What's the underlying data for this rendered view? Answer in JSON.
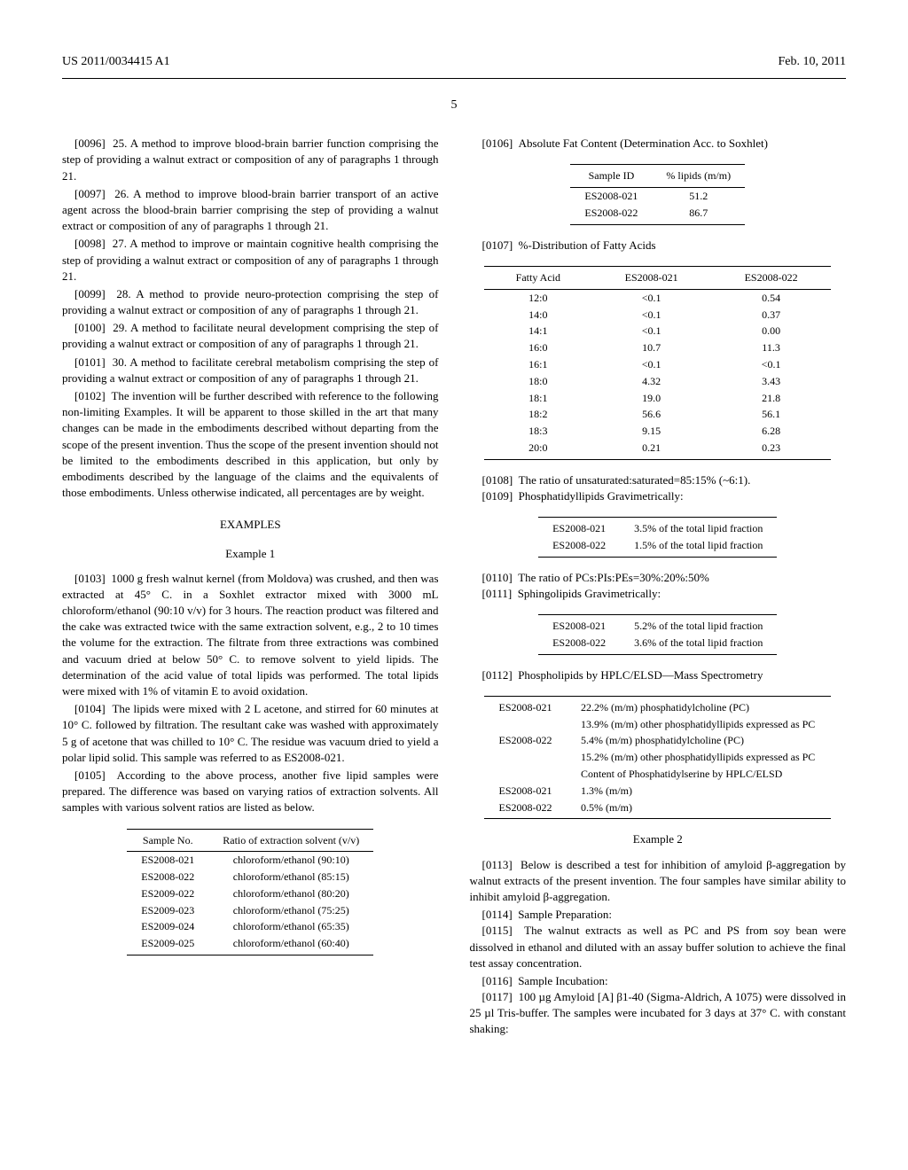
{
  "header": {
    "left": "US 2011/0034415 A1",
    "right": "Feb. 10, 2011"
  },
  "pageNum": "5",
  "leftCol": {
    "paras": [
      {
        "num": "[0096]",
        "text": "25. A method to improve blood-brain barrier function comprising the step of providing a walnut extract or composition of any of paragraphs 1 through 21."
      },
      {
        "num": "[0097]",
        "text": "26. A method to improve blood-brain barrier transport of an active agent across the blood-brain barrier comprising the step of providing a walnut extract or composition of any of paragraphs 1 through 21."
      },
      {
        "num": "[0098]",
        "text": "27. A method to improve or maintain cognitive health comprising the step of providing a walnut extract or composition of any of paragraphs 1 through 21."
      },
      {
        "num": "[0099]",
        "text": "28. A method to provide neuro-protection comprising the step of providing a walnut extract or composition of any of paragraphs 1 through 21."
      },
      {
        "num": "[0100]",
        "text": "29. A method to facilitate neural development comprising the step of providing a walnut extract or composition of any of paragraphs 1 through 21."
      },
      {
        "num": "[0101]",
        "text": "30. A method to facilitate cerebral metabolism comprising the step of providing a walnut extract or composition of any of paragraphs 1 through 21."
      },
      {
        "num": "[0102]",
        "text": "The invention will be further described with reference to the following non-limiting Examples. It will be apparent to those skilled in the art that many changes can be made in the embodiments described without departing from the scope of the present invention. Thus the scope of the present invention should not be limited to the embodiments described in this application, but only by embodiments described by the language of the claims and the equivalents of those embodiments. Unless otherwise indicated, all percentages are by weight."
      }
    ],
    "examplesHeading": "EXAMPLES",
    "example1Heading": "Example 1",
    "exampleParas": [
      {
        "num": "[0103]",
        "text": "1000 g fresh walnut kernel (from Moldova) was crushed, and then was extracted at 45° C. in a Soxhlet extractor mixed with 3000 mL chloroform/ethanol (90:10 v/v) for 3 hours. The reaction product was filtered and the cake was extracted twice with the same extraction solvent, e.g., 2 to 10 times the volume for the extraction. The filtrate from three extractions was combined and vacuum dried at below 50° C. to remove solvent to yield lipids. The determination of the acid value of total lipids was performed. The total lipids were mixed with 1% of vitamin E to avoid oxidation."
      },
      {
        "num": "[0104]",
        "text": "The lipids were mixed with 2 L acetone, and stirred for 60 minutes at 10° C. followed by filtration. The resultant cake was washed with approximately 5 g of acetone that was chilled to 10° C. The residue was vacuum dried to yield a polar lipid solid. This sample was referred to as ES2008-021."
      },
      {
        "num": "[0105]",
        "text": "According to the above process, another five lipid samples were prepared. The difference was based on varying ratios of extraction solvents. All samples with various solvent ratios are listed as below."
      }
    ],
    "table1": {
      "headers": [
        "Sample No.",
        "Ratio of extraction solvent (v/v)"
      ],
      "rows": [
        [
          "ES2008-021",
          "chloroform/ethanol (90:10)"
        ],
        [
          "ES2008-022",
          "chloroform/ethanol (85:15)"
        ],
        [
          "ES2009-022",
          "chloroform/ethanol (80:20)"
        ],
        [
          "ES2009-023",
          "chloroform/ethanol (75:25)"
        ],
        [
          "ES2009-024",
          "chloroform/ethanol (65:35)"
        ],
        [
          "ES2009-025",
          "chloroform/ethanol (60:40)"
        ]
      ]
    }
  },
  "rightCol": {
    "para106": {
      "num": "[0106]",
      "text": "Absolute Fat Content (Determination Acc. to Soxhlet)"
    },
    "table2": {
      "headers": [
        "Sample ID",
        "% lipids (m/m)"
      ],
      "rows": [
        [
          "ES2008-021",
          "51.2"
        ],
        [
          "ES2008-022",
          "86.7"
        ]
      ]
    },
    "para107": {
      "num": "[0107]",
      "text": "%-Distribution of Fatty Acids"
    },
    "table3": {
      "headers": [
        "Fatty Acid",
        "ES2008-021",
        "ES2008-022"
      ],
      "rows": [
        [
          "12:0",
          "<0.1",
          "0.54"
        ],
        [
          "14:0",
          "<0.1",
          "0.37"
        ],
        [
          "14:1",
          "<0.1",
          "0.00"
        ],
        [
          "16:0",
          "10.7",
          "11.3"
        ],
        [
          "16:1",
          "<0.1",
          "<0.1"
        ],
        [
          "18:0",
          "4.32",
          "3.43"
        ],
        [
          "18:1",
          "19.0",
          "21.8"
        ],
        [
          "18:2",
          "56.6",
          "56.1"
        ],
        [
          "18:3",
          "9.15",
          "6.28"
        ],
        [
          "20:0",
          "0.21",
          "0.23"
        ]
      ]
    },
    "para108": {
      "num": "[0108]",
      "text": "The ratio of unsaturated:saturated=85:15% (~6:1)."
    },
    "para109": {
      "num": "[0109]",
      "text": "Phosphatidyllipids Gravimetrically:"
    },
    "table4": {
      "rows": [
        [
          "ES2008-021",
          "3.5% of the total lipid fraction"
        ],
        [
          "ES2008-022",
          "1.5% of the total lipid fraction"
        ]
      ]
    },
    "para110": {
      "num": "[0110]",
      "text": "The ratio of PCs:PIs:PEs=30%:20%:50%"
    },
    "para111": {
      "num": "[0111]",
      "text": "Sphingolipids Gravimetrically:"
    },
    "table5": {
      "rows": [
        [
          "ES2008-021",
          "5.2% of the total lipid fraction"
        ],
        [
          "ES2008-022",
          "3.6% of the total lipid fraction"
        ]
      ]
    },
    "para112": {
      "num": "[0112]",
      "text": "Phospholipids by HPLC/ELSD—Mass Spectrometry"
    },
    "table6": {
      "rows": [
        [
          "ES2008-021",
          "22.2% (m/m) phosphatidylcholine (PC)"
        ],
        [
          "",
          "13.9% (m/m) other phosphatidyllipids expressed as PC"
        ],
        [
          "ES2008-022",
          "5.4% (m/m) phosphatidylcholine (PC)"
        ],
        [
          "",
          "15.2% (m/m) other phosphatidyllipids expressed as PC"
        ],
        [
          "",
          "Content of Phosphatidylserine by HPLC/ELSD"
        ],
        [
          "ES2008-021",
          "1.3% (m/m)"
        ],
        [
          "ES2008-022",
          "0.5% (m/m)"
        ]
      ]
    },
    "example2Heading": "Example 2",
    "para113": {
      "num": "[0113]",
      "text": "Below is described a test for inhibition of amyloid β-aggregation by walnut extracts of the present invention. The four samples have similar ability to inhibit amyloid β-aggregation."
    },
    "para114": {
      "num": "[0114]",
      "text": "Sample Preparation:"
    },
    "para115": {
      "num": "[0115]",
      "text": "The walnut extracts as well as PC and PS from soy bean were dissolved in ethanol and diluted with an assay buffer solution to achieve the final test assay concentration."
    },
    "para116": {
      "num": "[0116]",
      "text": "Sample Incubation:"
    },
    "para117": {
      "num": "[0117]",
      "text": "100 µg Amyloid [A] β1-40 (Sigma-Aldrich, A 1075) were dissolved in 25 µl Tris-buffer. The samples were incubated for 3 days at 37° C. with constant shaking:"
    }
  }
}
